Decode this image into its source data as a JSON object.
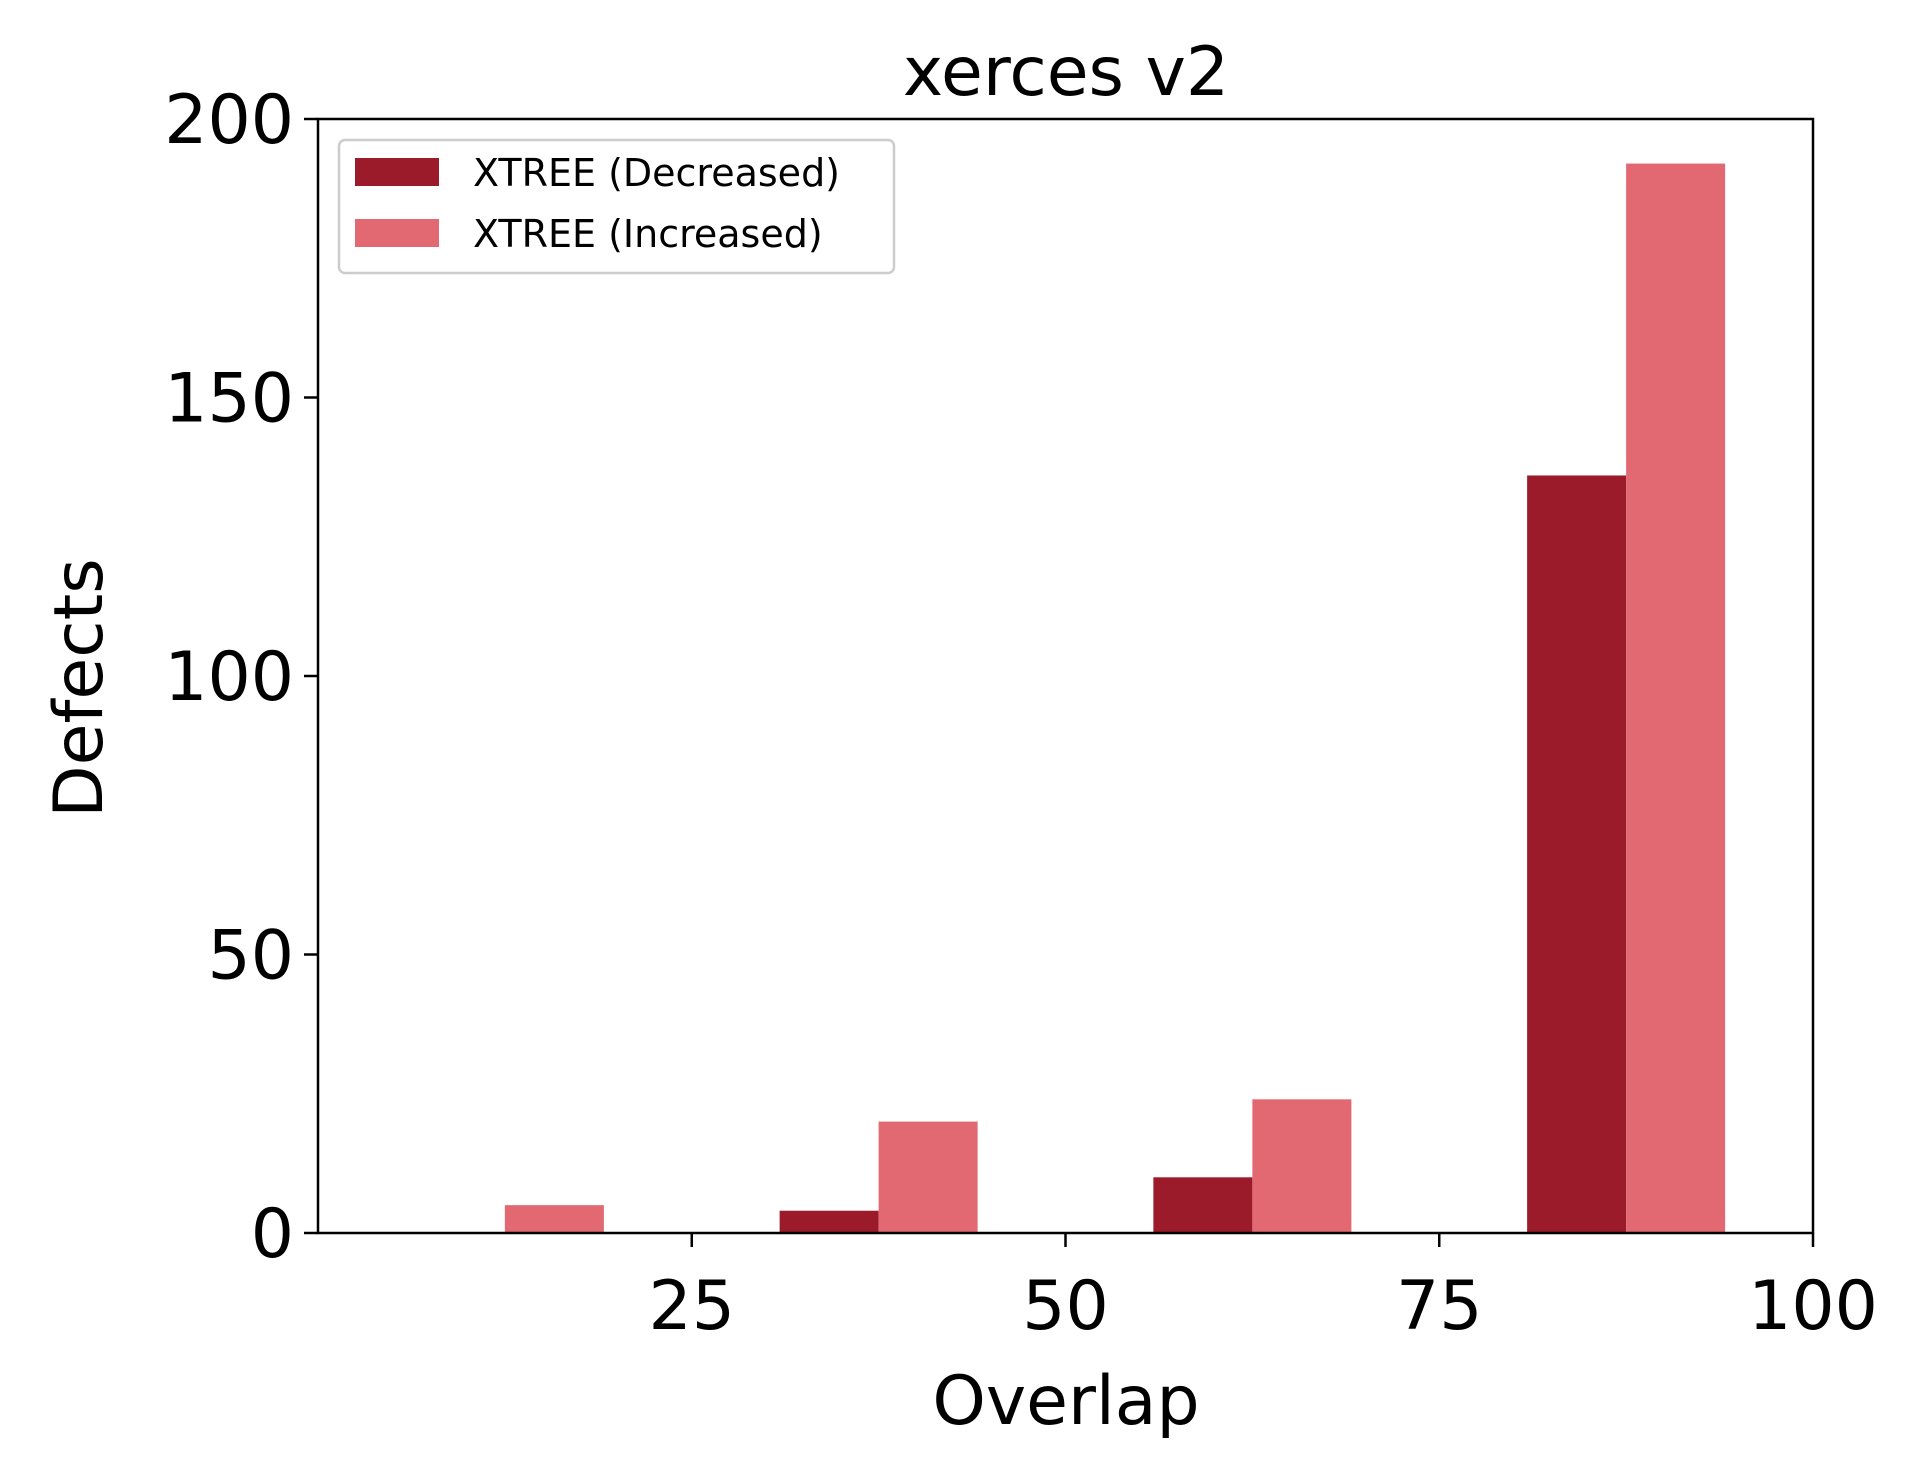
{
  "chart_data": {
    "type": "bar",
    "title": "xerces v2",
    "xlabel": "Overlap",
    "ylabel": "Defects",
    "x_ticks": [
      "25",
      "50",
      "75",
      "100"
    ],
    "y_ticks": [
      "0",
      "50",
      "100",
      "150",
      "200"
    ],
    "xlim": [
      0,
      100
    ],
    "ylim": [
      0,
      200
    ],
    "grid": false,
    "legend_position": "top-left",
    "bin_centers": [
      12.5,
      37.5,
      62.5,
      87.5
    ],
    "series": [
      {
        "name": "XTREE (Decreased)",
        "color": "#9b1b2a",
        "values": [
          0,
          4,
          10,
          136
        ]
      },
      {
        "name": "XTREE (Increased)",
        "color": "#e26872",
        "values": [
          5,
          20,
          24,
          192
        ]
      }
    ]
  }
}
